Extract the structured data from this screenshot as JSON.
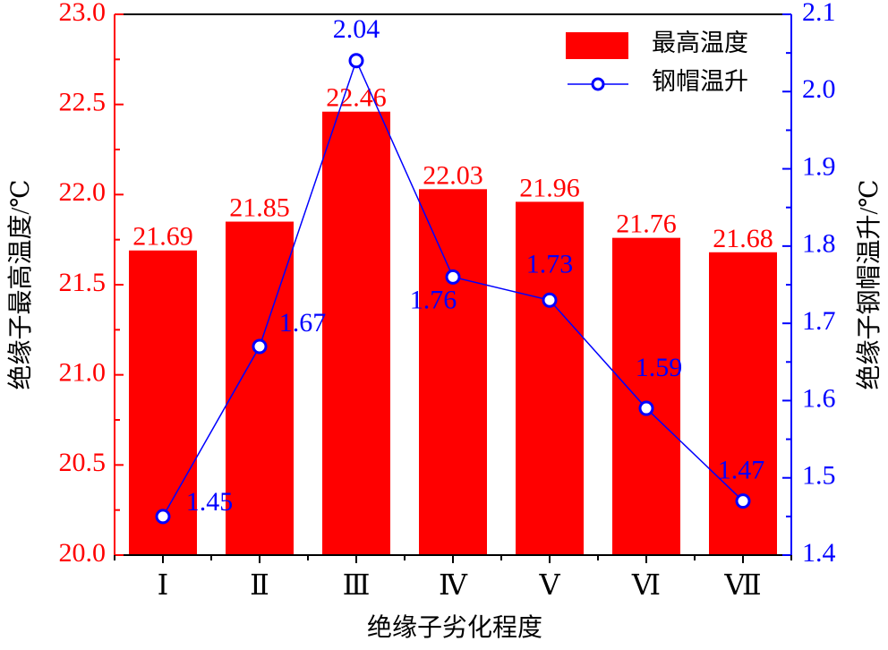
{
  "chart_data": {
    "type": "bar",
    "categories": [
      "Ⅰ",
      "Ⅱ",
      "Ⅲ",
      "Ⅳ",
      "Ⅴ",
      "Ⅵ",
      "Ⅶ"
    ],
    "xlabel": "绝缘子劣化程度",
    "ylabel": "绝缘子最高温度/℃",
    "y2label": "绝缘子钢帽温升/℃",
    "ylim": [
      20.0,
      23.0
    ],
    "y2lim": [
      1.4,
      2.1
    ],
    "yticks": [
      "20.0",
      "20.5",
      "21.0",
      "21.5",
      "22.0",
      "22.5",
      "23.0"
    ],
    "y2ticks": [
      "1.4",
      "1.5",
      "1.6",
      "1.7",
      "1.8",
      "1.9",
      "2.0",
      "2.1"
    ],
    "legend_position": "top-right",
    "series": [
      {
        "name": "最高温度",
        "type": "bar",
        "axis": "left",
        "color": "#ff0000",
        "values": [
          21.69,
          21.85,
          22.46,
          22.03,
          21.96,
          21.76,
          21.68
        ],
        "labels": [
          "21.69",
          "21.85",
          "22.46",
          "22.03",
          "21.96",
          "21.76",
          "21.68"
        ]
      },
      {
        "name": "钢帽温升",
        "type": "line",
        "axis": "right",
        "color": "#0000ff",
        "values": [
          1.45,
          1.67,
          2.04,
          1.76,
          1.73,
          1.59,
          1.47
        ],
        "labels": [
          "1.45",
          "1.67",
          "2.04",
          "1.76",
          "1.73",
          "1.59",
          "1.47"
        ]
      }
    ]
  }
}
